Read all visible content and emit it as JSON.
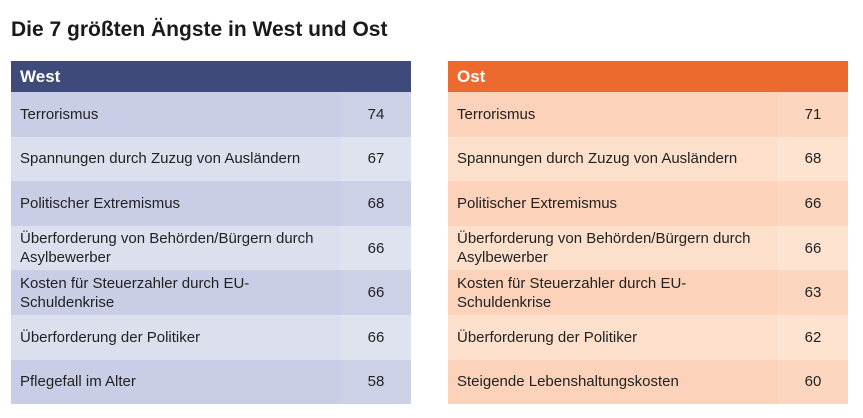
{
  "title": "Die 7 größten Ängste in West und Ost",
  "colors": {
    "west_header": "#3d4a7a",
    "ost_header": "#ec6a2e"
  },
  "chart_data": [
    {
      "type": "table",
      "title": "West",
      "rows": [
        {
          "label": "Terrorismus",
          "value": 74
        },
        {
          "label": "Spannungen durch Zuzug von Ausländern",
          "value": 67
        },
        {
          "label": "Politischer Extremismus",
          "value": 68
        },
        {
          "label": "Überforderung von Behörden/Bürgern durch Asylbewerber",
          "value": 66
        },
        {
          "label": "Kosten für Steuerzahler durch EU-Schuldenkrise",
          "value": 66
        },
        {
          "label": "Überforderung der Politiker",
          "value": 66
        },
        {
          "label": "Pflegefall im Alter",
          "value": 58
        }
      ]
    },
    {
      "type": "table",
      "title": "Ost",
      "rows": [
        {
          "label": "Terrorismus",
          "value": 71
        },
        {
          "label": "Spannungen durch Zuzug von Ausländern",
          "value": 68
        },
        {
          "label": "Politischer Extremismus",
          "value": 66
        },
        {
          "label": "Überforderung von Behörden/Bürgern durch Asylbewerber",
          "value": 66
        },
        {
          "label": "Kosten für Steuerzahler durch EU-Schuldenkrise",
          "value": 63
        },
        {
          "label": "Überforderung der Politiker",
          "value": 62
        },
        {
          "label": "Steigende Lebenshaltungskosten",
          "value": 60
        }
      ]
    }
  ]
}
